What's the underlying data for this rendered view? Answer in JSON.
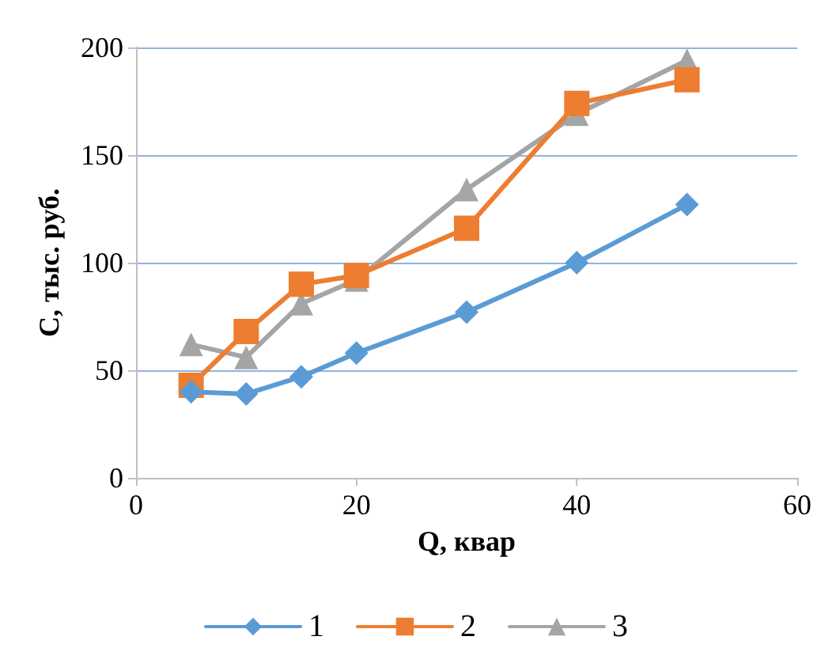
{
  "chart_data": {
    "type": "line",
    "xlabel": "Q, квар",
    "ylabel": "C, тыс. руб.",
    "x": [
      5,
      10,
      15,
      20,
      30,
      40,
      50
    ],
    "xlim": [
      0,
      60
    ],
    "xticks": [
      0,
      20,
      40,
      60
    ],
    "ylim": [
      0,
      200
    ],
    "yticks": [
      0,
      50,
      100,
      150,
      200
    ],
    "grid": "y",
    "legend": "bottom",
    "series": [
      {
        "name": "1",
        "color": "#5b9bd5",
        "marker": "diamond",
        "values": [
          40,
          39,
          47,
          58,
          77,
          100,
          127
        ]
      },
      {
        "name": "2",
        "color": "#ed7d31",
        "marker": "square",
        "values": [
          43,
          68,
          90,
          94,
          116,
          174,
          185
        ]
      },
      {
        "name": "3",
        "color": "#a5a5a5",
        "marker": "triangle",
        "values": [
          62,
          56,
          81,
          92,
          134,
          169,
          194
        ]
      }
    ]
  }
}
